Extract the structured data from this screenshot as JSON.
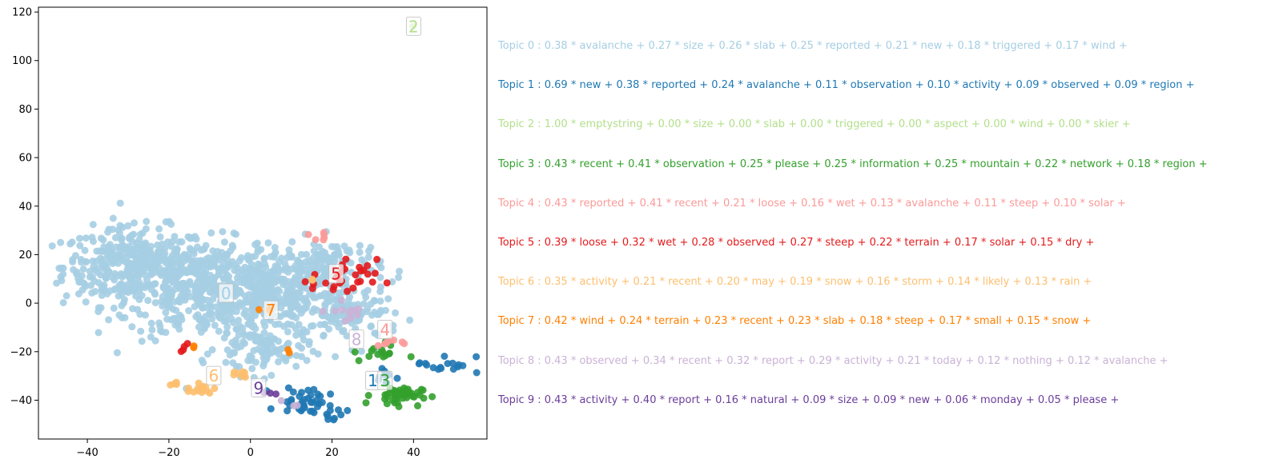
{
  "chart_data": {
    "type": "scatter",
    "title": "",
    "xlabel": "",
    "ylabel": "",
    "xlim": [
      -52,
      58
    ],
    "ylim": [
      -56,
      122
    ],
    "xticks": [
      -40,
      -20,
      0,
      20,
      40
    ],
    "yticks": [
      -40,
      -20,
      0,
      20,
      40,
      60,
      80,
      100,
      120
    ],
    "grid": false,
    "colors": [
      "#a6cee3",
      "#1f78b4",
      "#b2df8a",
      "#33a02c",
      "#fb9a99",
      "#e31a1c",
      "#fdbf6f",
      "#ff7f00",
      "#cab2d6",
      "#6a3d9a"
    ],
    "clusters": [
      {
        "label": "0",
        "x": -6,
        "y": 4
      },
      {
        "label": "1",
        "x": 30,
        "y": -32
      },
      {
        "label": "2",
        "x": 40,
        "y": 114
      },
      {
        "label": "3",
        "x": 33,
        "y": -32
      },
      {
        "label": "4",
        "x": 33,
        "y": -11
      },
      {
        "label": "5",
        "x": 21,
        "y": 12
      },
      {
        "label": "6",
        "x": -9,
        "y": -30
      },
      {
        "label": "7",
        "x": 5,
        "y": -3
      },
      {
        "label": "8",
        "x": 26,
        "y": -15
      },
      {
        "label": "9",
        "x": 2,
        "y": -35
      }
    ],
    "topics": [
      "Topic 0 : 0.38 * avalanche + 0.27 * size + 0.26 * slab + 0.25 * reported + 0.21 * new + 0.18 * triggered + 0.17 * wind +",
      "Topic 1 : 0.69 * new + 0.38 * reported + 0.24 * avalanche + 0.11 * observation + 0.10 * activity + 0.09 * observed + 0.09 * region +",
      "Topic 2 : 1.00 * emptystring + 0.00 * size + 0.00 * slab + 0.00 * triggered + 0.00 * aspect + 0.00 * wind + 0.00 * skier +",
      "Topic 3 : 0.43 * recent + 0.41 * observation + 0.25 * please + 0.25 * information + 0.25 * mountain + 0.22 * network + 0.18 * region +",
      "Topic 4 : 0.43 * reported + 0.41 * recent + 0.21 * loose + 0.16 * wet + 0.13 * avalanche + 0.11 * steep + 0.10 * solar +",
      "Topic 5 : 0.39 * loose + 0.32 * wet + 0.28 * observed + 0.27 * steep + 0.22 * terrain + 0.17 * solar + 0.15 * dry +",
      "Topic 6 : 0.35 * activity + 0.21 * recent + 0.20 * may + 0.19 * snow + 0.16 * storm + 0.14 * likely + 0.13 * rain +",
      "Topic 7 : 0.42 * wind + 0.24 * terrain + 0.23 * recent + 0.23 * slab + 0.18 * steep + 0.17 * small + 0.15 * snow +",
      "Topic 8 : 0.43 * observed + 0.34 * recent + 0.32 * report + 0.29 * activity + 0.21 * today + 0.12 * nothing + 0.12 * avalanche +",
      "Topic 9 : 0.43 * activity + 0.40 * report + 0.16 * natural + 0.09 * size + 0.09 * new + 0.06 * monday + 0.05 * please +"
    ]
  }
}
